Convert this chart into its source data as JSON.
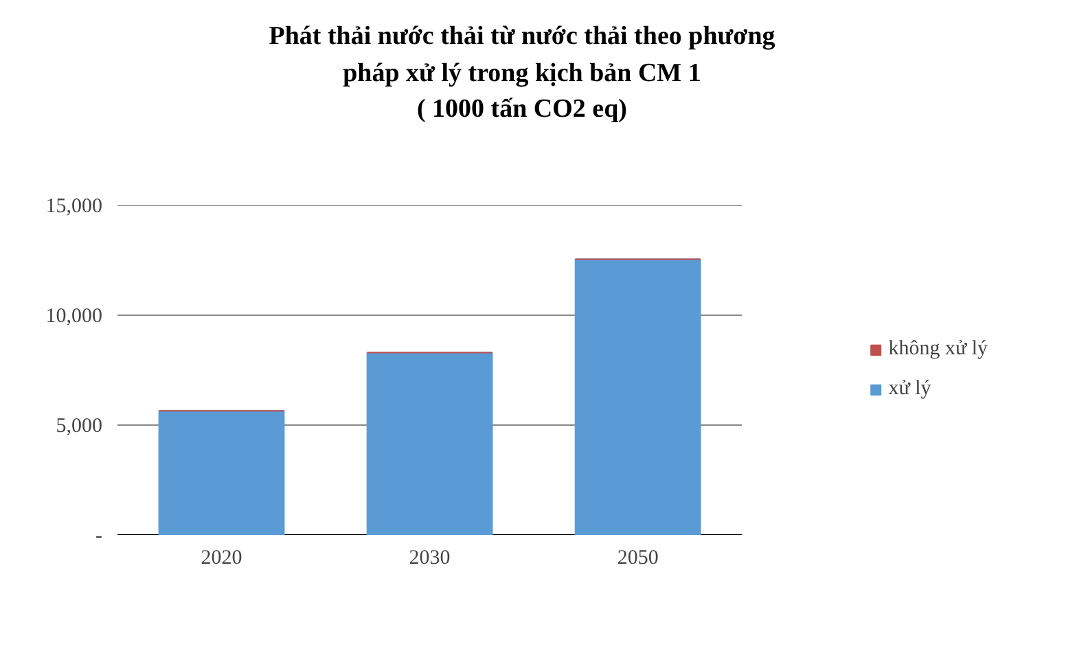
{
  "chart_data": {
    "type": "bar",
    "title": "Phát thải nước thải từ nước thải theo phương\npháp xử lý trong kịch bản CM 1\n( 1000 tấn CO2 eq)",
    "categories": [
      "2020",
      "2030",
      "2050"
    ],
    "stacked": true,
    "series": [
      {
        "name": "xử lý",
        "color": "#5b9bd5",
        "values": [
          5650,
          8300,
          12550
        ]
      },
      {
        "name": "không xử lý",
        "color": "#c0504d",
        "values": [
          0,
          0,
          0
        ]
      }
    ],
    "ylim": [
      0,
      15000
    ],
    "yticks": [
      {
        "value": 0,
        "label": "-"
      },
      {
        "value": 5000,
        "label": "5,000"
      },
      {
        "value": 10000,
        "label": "10,000"
      },
      {
        "value": 15000,
        "label": "15,000"
      }
    ],
    "grid": "y",
    "legend": "right"
  }
}
